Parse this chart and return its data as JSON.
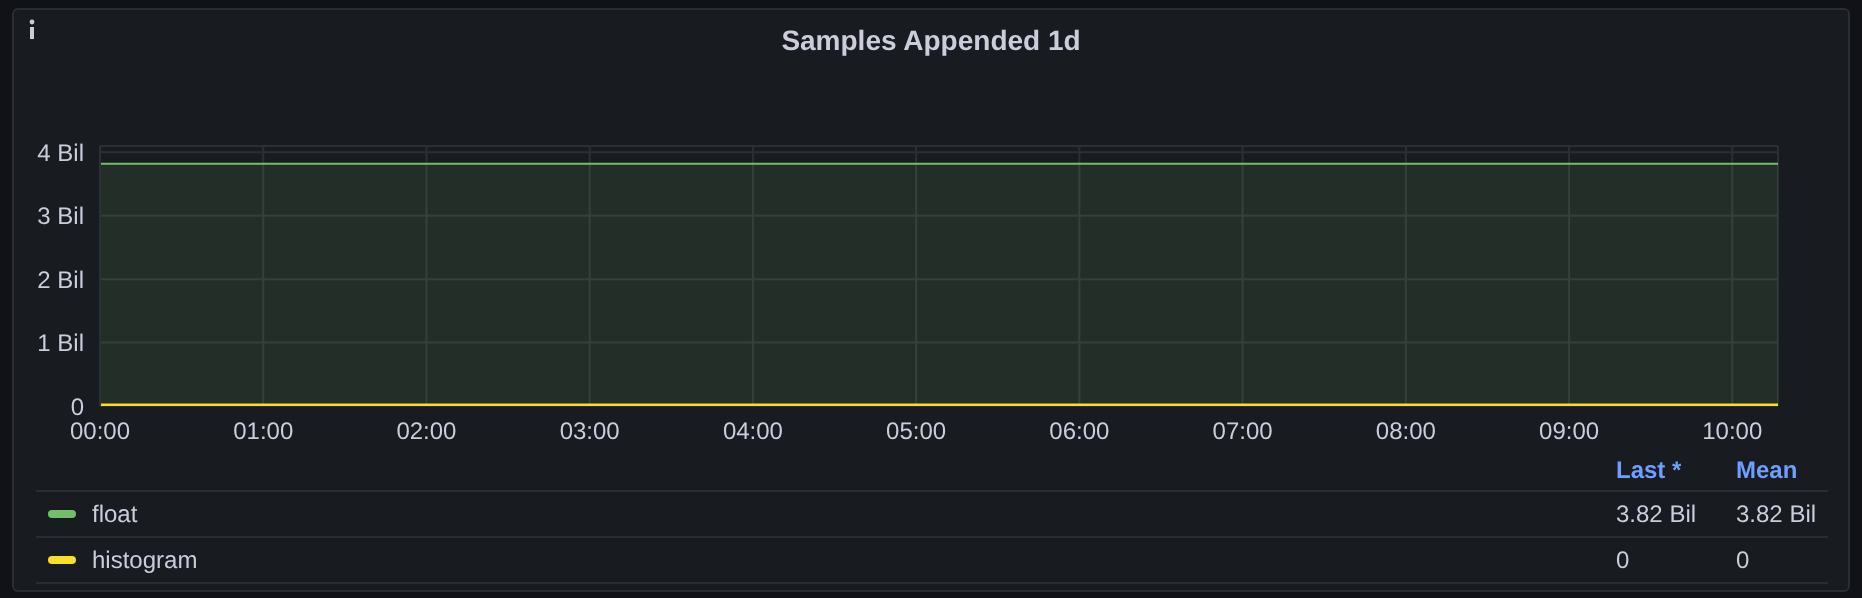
{
  "chart_data": {
    "type": "area",
    "title": "Samples Appended 1d",
    "x": [
      0,
      10.28
    ],
    "xlim": [
      0,
      10.28
    ],
    "xticks": [
      {
        "value": 0,
        "label": "00:00"
      },
      {
        "value": 1,
        "label": "01:00"
      },
      {
        "value": 2,
        "label": "02:00"
      },
      {
        "value": 3,
        "label": "03:00"
      },
      {
        "value": 4,
        "label": "04:00"
      },
      {
        "value": 5,
        "label": "05:00"
      },
      {
        "value": 6,
        "label": "06:00"
      },
      {
        "value": 7,
        "label": "07:00"
      },
      {
        "value": 8,
        "label": "08:00"
      },
      {
        "value": 9,
        "label": "09:00"
      },
      {
        "value": 10,
        "label": "10:00"
      }
    ],
    "ylim": [
      0,
      4.1
    ],
    "yticks": [
      0,
      {
        "value": 1,
        "label": "1 Bil"
      },
      {
        "value": 2,
        "label": "2 Bil"
      },
      {
        "value": 3,
        "label": "3 Bil"
      },
      {
        "value": 4,
        "label": "4 Bil"
      }
    ],
    "series": [
      {
        "name": "float",
        "color": "#73bf69",
        "values": [
          3.82,
          3.82
        ]
      },
      {
        "name": "histogram",
        "type": "line",
        "color": "#fade2a",
        "values": [
          0,
          0
        ]
      }
    ],
    "annotations": [
      "Last *",
      "Mean",
      "3.82 Bil",
      "3.82 Bil",
      "0",
      "0"
    ],
    "grid": true,
    "legend": "bottom",
    "marker": "none"
  }
}
